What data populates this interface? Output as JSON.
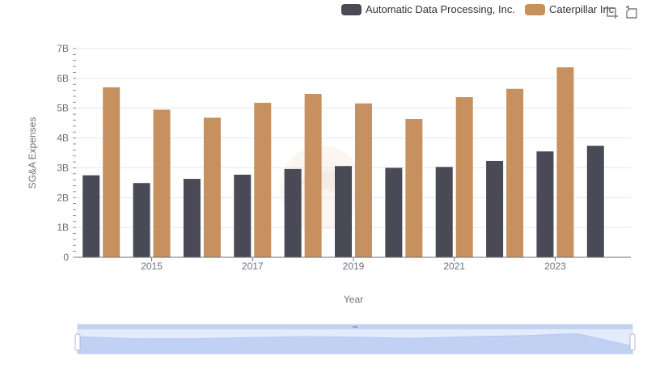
{
  "legend": {
    "items": [
      {
        "label": "Automatic Data Processing, Inc.",
        "color": "#4a4a56"
      },
      {
        "label": "Caterpillar Inc.",
        "color": "#c6915f"
      }
    ]
  },
  "toolbox": {
    "icons": [
      "zoom-icon",
      "restore-icon"
    ]
  },
  "chart_data": {
    "type": "bar",
    "title": "",
    "xlabel": "Year",
    "ylabel": "SG&A Expenses",
    "x": [
      2014,
      2015,
      2016,
      2017,
      2018,
      2019,
      2020,
      2021,
      2022,
      2023,
      2024
    ],
    "x_tick_labels": [
      "2015",
      "2017",
      "2019",
      "2021",
      "2023"
    ],
    "y_tick_labels": [
      "0",
      "1B",
      "2B",
      "3B",
      "4B",
      "5B",
      "6B",
      "7B"
    ],
    "ylim": [
      0,
      7000000000
    ],
    "grid": true,
    "legend_position": "top-right",
    "series": [
      {
        "name": "Automatic Data Processing, Inc.",
        "color": "#4a4a56",
        "values": [
          2750000000,
          2490000000,
          2630000000,
          2770000000,
          2960000000,
          3060000000,
          3000000000,
          3030000000,
          3230000000,
          3550000000,
          3740000000
        ]
      },
      {
        "name": "Caterpillar Inc.",
        "color": "#c6915f",
        "values": [
          5700000000,
          4950000000,
          4680000000,
          5180000000,
          5480000000,
          5160000000,
          4640000000,
          5370000000,
          5650000000,
          6370000000,
          null
        ]
      }
    ]
  },
  "datazoom": {
    "range": [
      0,
      100
    ]
  }
}
